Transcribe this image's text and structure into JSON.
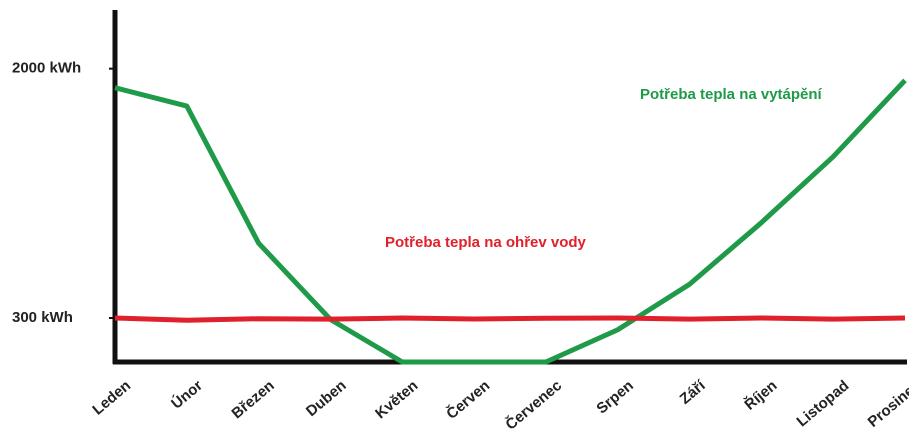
{
  "chart_data": {
    "type": "line",
    "categories": [
      "Leden",
      "Únor",
      "Březen",
      "Duben",
      "Květen",
      "Červen",
      "Červenec",
      "Srpen",
      "Září",
      "Říjen",
      "Listopad",
      "Prosinec"
    ],
    "series": [
      {
        "name": "Potřeba tepla na vytápění",
        "color": "#1e9a48",
        "values": [
          1870,
          1745,
          810,
          290,
          0,
          0,
          0,
          220,
          530,
          950,
          1400,
          1920
        ]
      },
      {
        "name": "Potřeba tepla na ohřev vody",
        "color": "#e0202a",
        "values": [
          300,
          285,
          295,
          292,
          300,
          293,
          298,
          300,
          292,
          300,
          292,
          300
        ]
      }
    ],
    "ylim": [
      0,
      2400
    ],
    "yticks": [
      {
        "value": 300,
        "label": "300 kWh"
      },
      {
        "value": 2000,
        "label": "2000 kWh"
      }
    ]
  }
}
